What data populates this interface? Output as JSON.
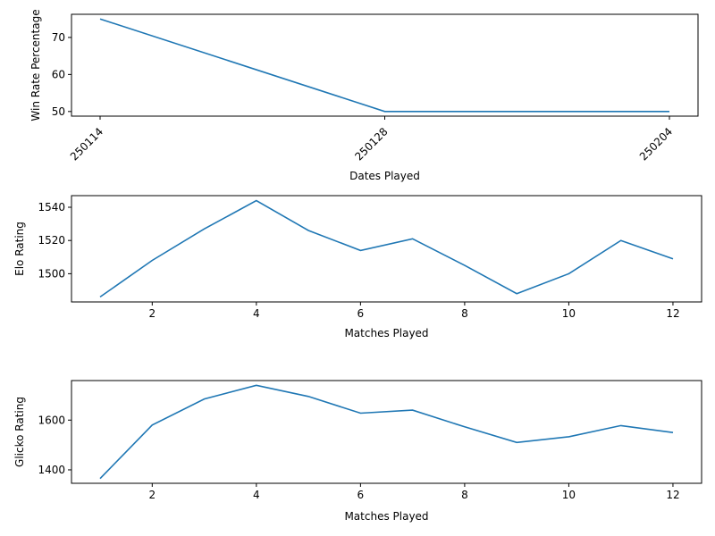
{
  "chart_data": [
    {
      "type": "line",
      "xlabel": "Dates Played",
      "ylabel": "Win Rate Percentage",
      "x_categories": [
        "250114",
        "250128",
        "250204"
      ],
      "series": [
        {
          "x": [
            "250114",
            "250128",
            "250204"
          ],
          "y": [
            75,
            50,
            50
          ]
        }
      ],
      "ylim": [
        48.75,
        76.25
      ],
      "yticks": [
        50,
        60,
        70
      ],
      "xtick_rotation": 45,
      "grid": false,
      "color": "#1f77b4"
    },
    {
      "type": "line",
      "xlabel": "Matches Played",
      "ylabel": "Elo Rating",
      "series": [
        {
          "x": [
            1,
            2,
            3,
            4,
            5,
            6,
            7,
            8,
            9,
            10,
            11,
            12
          ],
          "y": [
            1486,
            1508,
            1527,
            1544,
            1526,
            1514,
            1521,
            1505,
            1488,
            1500,
            1520,
            1509
          ]
        }
      ],
      "xlim": [
        0.45,
        12.55
      ],
      "ylim": [
        1483,
        1547
      ],
      "xticks": [
        2,
        4,
        6,
        8,
        10,
        12
      ],
      "yticks": [
        1500,
        1520,
        1540
      ],
      "grid": false,
      "color": "#1f77b4"
    },
    {
      "type": "line",
      "xlabel": "Matches Played",
      "ylabel": "Glicko Rating",
      "series": [
        {
          "x": [
            1,
            2,
            3,
            4,
            5,
            6,
            7,
            8,
            9,
            10,
            11,
            12
          ],
          "y": [
            1365,
            1580,
            1685,
            1740,
            1695,
            1628,
            1640,
            1573,
            1510,
            1533,
            1578,
            1550
          ]
        }
      ],
      "xlim": [
        0.45,
        12.55
      ],
      "ylim": [
        1346,
        1759
      ],
      "xticks": [
        2,
        4,
        6,
        8,
        10,
        12
      ],
      "yticks": [
        1400,
        1600
      ],
      "grid": false,
      "color": "#1f77b4"
    }
  ]
}
